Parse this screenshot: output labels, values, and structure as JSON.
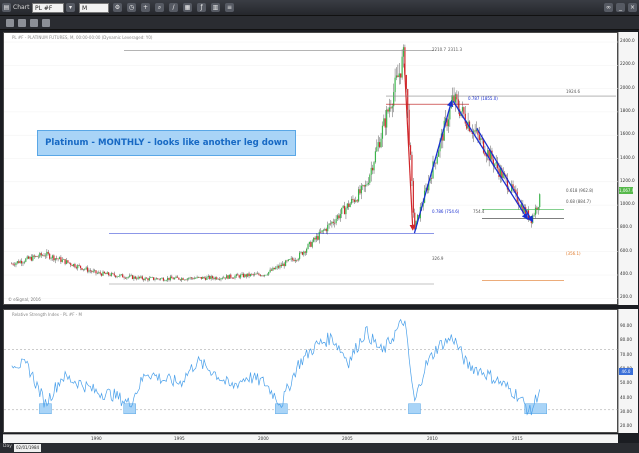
{
  "toolbar": {
    "chart_label": "Chart",
    "symbol": "PL #F",
    "interval": "M",
    "icon_names": [
      "chart-icon",
      "dropdown-icon",
      "gear-icon",
      "interval-icon",
      "crosshair-icon",
      "zoom-icon",
      "draw-icon",
      "calendar-icon",
      "fx-icon",
      "layout-icon",
      "settings-icon"
    ],
    "window_buttons": [
      "link-icon",
      "minimize-icon",
      "close-icon"
    ]
  },
  "price_panel": {
    "title": "PL #F - PLATINUM FUTURES, M, 00:00-00:00 (Dynamic Leveraged: Y0)",
    "annotation": "Platinum - MONTHLY - looks like another leg down",
    "watermark": "© eSignal, 2016",
    "last_price": "1,067.9",
    "levels": {
      "top_a": "2210.7",
      "top_b": "2311.3",
      "fib_787": "0.787 (1855.0)",
      "high_2014": "1924.6",
      "fib_618": "0.618 (962.8)",
      "fib_68": "0.68 (884.7)",
      "fib_786": "0.786 (754.6)",
      "low_2008": "754.4",
      "low_1990s": "326.9",
      "target": "(356.1)"
    },
    "y_ticks": [
      "2400.0",
      "2200.0",
      "2000.0",
      "1800.0",
      "1600.0",
      "1400.0",
      "1200.0",
      "1000.0",
      "800.0",
      "600.0",
      "400.0",
      "200.0"
    ]
  },
  "indicator_panel": {
    "title": "Relative Strength Index - PL #F - M",
    "last_value": "46.0",
    "y_ticks": [
      "90.00",
      "80.00",
      "70.00",
      "60.00",
      "50.00",
      "40.00",
      "30.00",
      "20.00"
    ]
  },
  "x_axis": {
    "ticks": [
      "1990",
      "1995",
      "2000",
      "2005",
      "2010",
      "2015"
    ]
  },
  "status": {
    "label": "Day",
    "date": "02/01/1984"
  },
  "colors": {
    "up_candle": "#3ab54a",
    "down_candle": "#d0262a",
    "rsi_line": "#4aa0ea",
    "trend_arrows": "#1a2fd0",
    "annotation_bg": "#a9d4f7",
    "annotation_text": "#1769c4"
  },
  "chart_data": {
    "type": "candlestick",
    "approx_close_path": [
      {
        "year": 1985,
        "value": 500
      },
      {
        "year": 1987,
        "value": 580
      },
      {
        "year": 1990,
        "value": 420
      },
      {
        "year": 1993,
        "value": 370
      },
      {
        "year": 1997,
        "value": 380
      },
      {
        "year": 2000,
        "value": 410
      },
      {
        "year": 2002,
        "value": 560
      },
      {
        "year": 2004,
        "value": 850
      },
      {
        "year": 2006,
        "value": 1150
      },
      {
        "year": 2008.3,
        "value": 2270
      },
      {
        "year": 2008.9,
        "value": 790
      },
      {
        "year": 2011.2,
        "value": 1900
      },
      {
        "year": 2013,
        "value": 1500
      },
      {
        "year": 2015.8,
        "value": 870
      },
      {
        "year": 2016.4,
        "value": 1068
      }
    ],
    "rsi_lows_highlighted_years": [
      1987,
      1992,
      2001,
      2008.9,
      2015.8
    ],
    "ylim": [
      200,
      2400
    ]
  }
}
